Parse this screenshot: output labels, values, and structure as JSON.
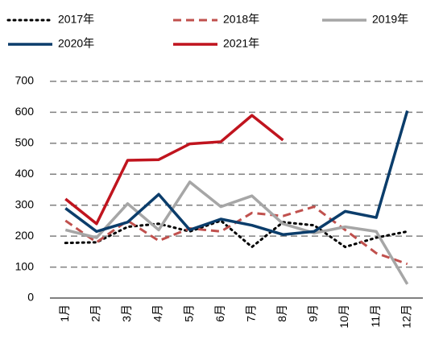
{
  "chart_data": {
    "type": "line",
    "categories": [
      "1月",
      "2月",
      "3月",
      "4月",
      "5月",
      "6月",
      "7月",
      "8月",
      "9月",
      "10月",
      "11月",
      "12月"
    ],
    "series": [
      {
        "name": "2017年",
        "color": "#000000",
        "style": "dotted",
        "values": [
          178,
          180,
          230,
          240,
          215,
          250,
          165,
          245,
          235,
          165,
          195,
          215
        ]
      },
      {
        "name": "2018年",
        "color": "#c0504d",
        "style": "dashed",
        "values": [
          250,
          180,
          250,
          185,
          225,
          215,
          275,
          265,
          295,
          220,
          145,
          110
        ]
      },
      {
        "name": "2019年",
        "color": "#a6a6a6",
        "style": "solid",
        "values": [
          220,
          195,
          305,
          220,
          375,
          295,
          330,
          240,
          210,
          230,
          215,
          45
        ]
      },
      {
        "name": "2020年",
        "color": "#0b3d6b",
        "style": "solid",
        "values": [
          290,
          215,
          245,
          335,
          220,
          255,
          235,
          205,
          215,
          280,
          260,
          605
        ]
      },
      {
        "name": "2021年",
        "color": "#c0141e",
        "style": "solid",
        "values": [
          320,
          240,
          445,
          447,
          498,
          505,
          590,
          510,
          null,
          null,
          null,
          null
        ]
      }
    ],
    "ylim": [
      0,
      700
    ],
    "yticks": [
      0,
      100,
      200,
      300,
      400,
      500,
      600,
      700
    ],
    "grid": true
  }
}
